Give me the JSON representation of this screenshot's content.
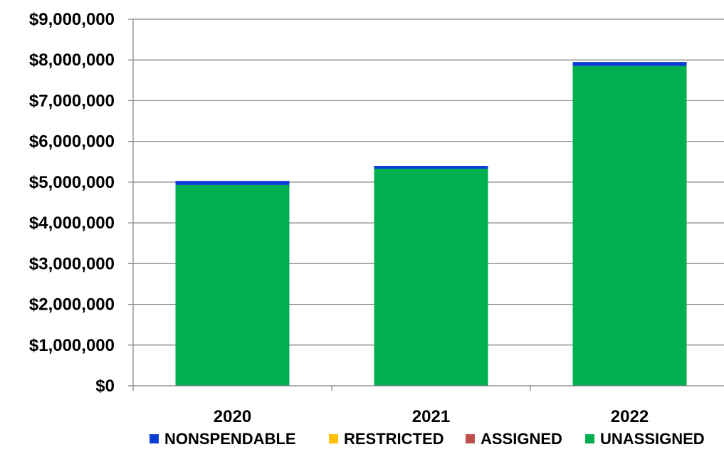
{
  "chart_data": {
    "type": "bar",
    "stacked": true,
    "categories": [
      "2020",
      "2021",
      "2022"
    ],
    "series": [
      {
        "name": "NONSPENDABLE",
        "color": "#0B3ED6",
        "values": [
          100000,
          70000,
          100000
        ]
      },
      {
        "name": "RESTRICTED",
        "color": "#FFC000",
        "values": [
          0,
          0,
          0
        ]
      },
      {
        "name": "ASSIGNED",
        "color": "#C0504D",
        "values": [
          0,
          0,
          0
        ]
      },
      {
        "name": "UNASSIGNED",
        "color": "#00B050",
        "values": [
          4930000,
          5330000,
          7850000
        ]
      }
    ],
    "ylim": [
      0,
      9000000
    ],
    "yticks": [
      0,
      1000000,
      2000000,
      3000000,
      4000000,
      5000000,
      6000000,
      7000000,
      8000000,
      9000000
    ],
    "ytick_labels": [
      "$0",
      "$1,000,000",
      "$2,000,000",
      "$3,000,000",
      "$4,000,000",
      "$5,000,000",
      "$6,000,000",
      "$7,000,000",
      "$8,000,000",
      "$9,000,000"
    ],
    "grid": true,
    "legend_position": "bottom",
    "gridline_color": "#808080",
    "axis_color": "#808080"
  }
}
